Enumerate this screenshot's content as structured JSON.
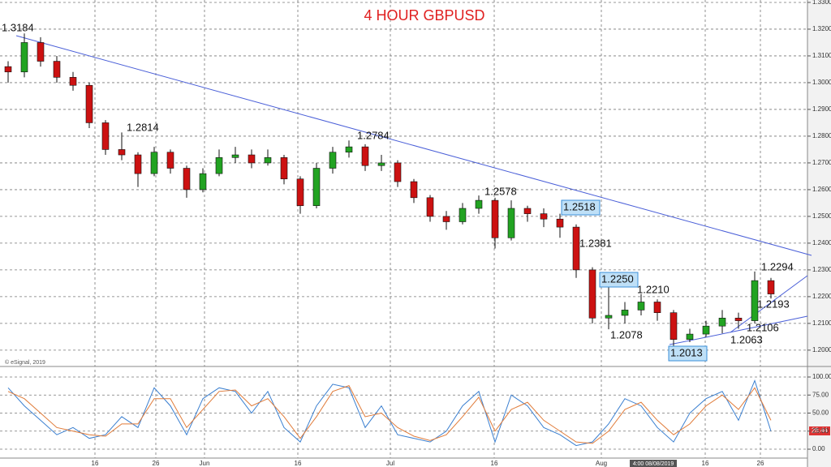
{
  "chart_data": [
    {
      "type": "candlestick",
      "title": "4 HOUR GBPUSD",
      "watermark": "© eSignal, 2019",
      "cursor_date": "4:00 08/08/2019",
      "x": [
        1,
        3,
        5,
        7,
        9,
        11,
        13,
        15,
        17,
        19,
        21,
        23,
        25,
        27,
        29,
        31,
        33,
        35,
        37,
        39,
        41,
        43,
        45,
        47,
        49,
        51,
        53,
        55,
        57,
        59,
        61,
        63,
        65,
        67,
        69,
        71,
        73,
        75,
        77,
        79,
        81,
        83,
        85,
        87,
        89,
        91,
        93,
        95
      ],
      "open": [
        1.306,
        1.304,
        1.315,
        1.308,
        1.302,
        1.299,
        1.285,
        1.275,
        1.273,
        1.266,
        1.274,
        1.268,
        1.26,
        1.266,
        1.272,
        1.273,
        1.27,
        1.272,
        1.264,
        1.254,
        1.268,
        1.274,
        1.276,
        1.269,
        1.27,
        1.263,
        1.257,
        1.25,
        1.248,
        1.253,
        1.256,
        1.242,
        1.253,
        1.251,
        1.249,
        1.246,
        1.23,
        1.212,
        1.213,
        1.215,
        1.218,
        1.214,
        1.204,
        1.206,
        1.209,
        1.212,
        1.211,
        1.226
      ],
      "high": [
        1.308,
        1.3184,
        1.317,
        1.31,
        1.304,
        1.3,
        1.286,
        1.2814,
        1.274,
        1.276,
        1.275,
        1.269,
        1.268,
        1.275,
        1.276,
        1.275,
        1.275,
        1.273,
        1.265,
        1.27,
        1.276,
        1.2784,
        1.277,
        1.273,
        1.271,
        1.264,
        1.258,
        1.252,
        1.255,
        1.2578,
        1.257,
        1.256,
        1.254,
        1.253,
        1.251,
        1.247,
        1.231,
        1.225,
        1.218,
        1.221,
        1.219,
        1.215,
        1.208,
        1.211,
        1.215,
        1.214,
        1.2294,
        1.227
      ],
      "low": [
        1.3,
        1.302,
        1.306,
        1.3,
        1.297,
        1.283,
        1.273,
        1.271,
        1.261,
        1.265,
        1.266,
        1.257,
        1.259,
        1.265,
        1.27,
        1.268,
        1.269,
        1.262,
        1.251,
        1.253,
        1.266,
        1.272,
        1.267,
        1.267,
        1.261,
        1.255,
        1.248,
        1.245,
        1.247,
        1.251,
        1.238,
        1.241,
        1.248,
        1.246,
        1.242,
        1.227,
        1.21,
        1.2078,
        1.21,
        1.213,
        1.211,
        1.2013,
        1.203,
        1.205,
        1.2063,
        1.208,
        1.21,
        1.2193
      ],
      "close": [
        1.304,
        1.315,
        1.308,
        1.302,
        1.299,
        1.285,
        1.275,
        1.273,
        1.266,
        1.274,
        1.268,
        1.26,
        1.266,
        1.272,
        1.273,
        1.27,
        1.272,
        1.264,
        1.254,
        1.268,
        1.274,
        1.276,
        1.269,
        1.27,
        1.263,
        1.257,
        1.25,
        1.248,
        1.253,
        1.256,
        1.242,
        1.253,
        1.251,
        1.249,
        1.246,
        1.23,
        1.212,
        1.213,
        1.215,
        1.218,
        1.214,
        1.204,
        1.206,
        1.209,
        1.212,
        1.211,
        1.226,
        1.221
      ],
      "up_color": "#22a322",
      "down_color": "#cc1111",
      "xlim": [
        0,
        99.5
      ],
      "xticks": [
        {
          "value": 11.7,
          "label": "16"
        },
        {
          "value": 19.2,
          "label": "26"
        },
        {
          "value": 25.2,
          "label": "Jun"
        },
        {
          "value": 36.7,
          "label": "16"
        },
        {
          "value": 48.1,
          "label": "Jul"
        },
        {
          "value": 60.9,
          "label": "16"
        },
        {
          "value": 74.1,
          "label": "Aug"
        },
        {
          "value": 86.9,
          "label": "16"
        },
        {
          "value": 93.7,
          "label": "26"
        }
      ],
      "ylim": [
        1.1939,
        1.3309
      ],
      "yticks": [
        {
          "value": 1.2,
          "label": "1.2000"
        },
        {
          "value": 1.21,
          "label": "1.2100"
        },
        {
          "value": 1.22,
          "label": "1.2200"
        },
        {
          "value": 1.23,
          "label": "1.2300"
        },
        {
          "value": 1.24,
          "label": "1.2400"
        },
        {
          "value": 1.25,
          "label": "1.2500"
        },
        {
          "value": 1.26,
          "label": "1.2600"
        },
        {
          "value": 1.27,
          "label": "1.2700"
        },
        {
          "value": 1.28,
          "label": "1.2800"
        },
        {
          "value": 1.29,
          "label": "1.2900"
        },
        {
          "value": 1.3,
          "label": "1.3000"
        },
        {
          "value": 1.31,
          "label": "1.3100"
        },
        {
          "value": 1.32,
          "label": "1.3200"
        },
        {
          "value": 1.33,
          "label": "1.3300"
        }
      ],
      "grid": true,
      "annotations": [
        "1.3184",
        "1.2814",
        "1.2784",
        "1.2578",
        "1.2518",
        "1.2381",
        "1.2250",
        "1.2210",
        "1.2193",
        "1.2294",
        "1.2078",
        "1.2106",
        "1.2063",
        "1.2013"
      ]
    },
    {
      "type": "line",
      "value_tag": "28.44",
      "series": [
        {
          "color": "#3a7fd0",
          "values": [
            85,
            60,
            40,
            20,
            30,
            15,
            20,
            45,
            30,
            85,
            60,
            20,
            70,
            85,
            80,
            50,
            80,
            30,
            10,
            60,
            90,
            85,
            30,
            60,
            20,
            15,
            10,
            25,
            60,
            80,
            10,
            75,
            60,
            30,
            20,
            5,
            10,
            35,
            70,
            60,
            30,
            10,
            50,
            70,
            80,
            40,
            95,
            25
          ]
        },
        {
          "color": "#e07b39",
          "values": [
            80,
            70,
            50,
            30,
            25,
            20,
            18,
            35,
            35,
            70,
            70,
            30,
            55,
            80,
            82,
            60,
            70,
            45,
            15,
            45,
            80,
            88,
            45,
            50,
            30,
            18,
            12,
            20,
            45,
            72,
            25,
            55,
            65,
            40,
            25,
            10,
            8,
            25,
            55,
            65,
            40,
            20,
            35,
            60,
            75,
            55,
            85,
            40
          ]
        }
      ],
      "ylim": [
        -15.7,
        110.1
      ],
      "yticks": [
        {
          "value": 0,
          "label": "0.00"
        },
        {
          "value": 25,
          "label": "25.00"
        },
        {
          "value": 50,
          "label": "50.00"
        },
        {
          "value": 75,
          "label": "75.00"
        },
        {
          "value": 100,
          "label": "100.00"
        }
      ]
    }
  ]
}
